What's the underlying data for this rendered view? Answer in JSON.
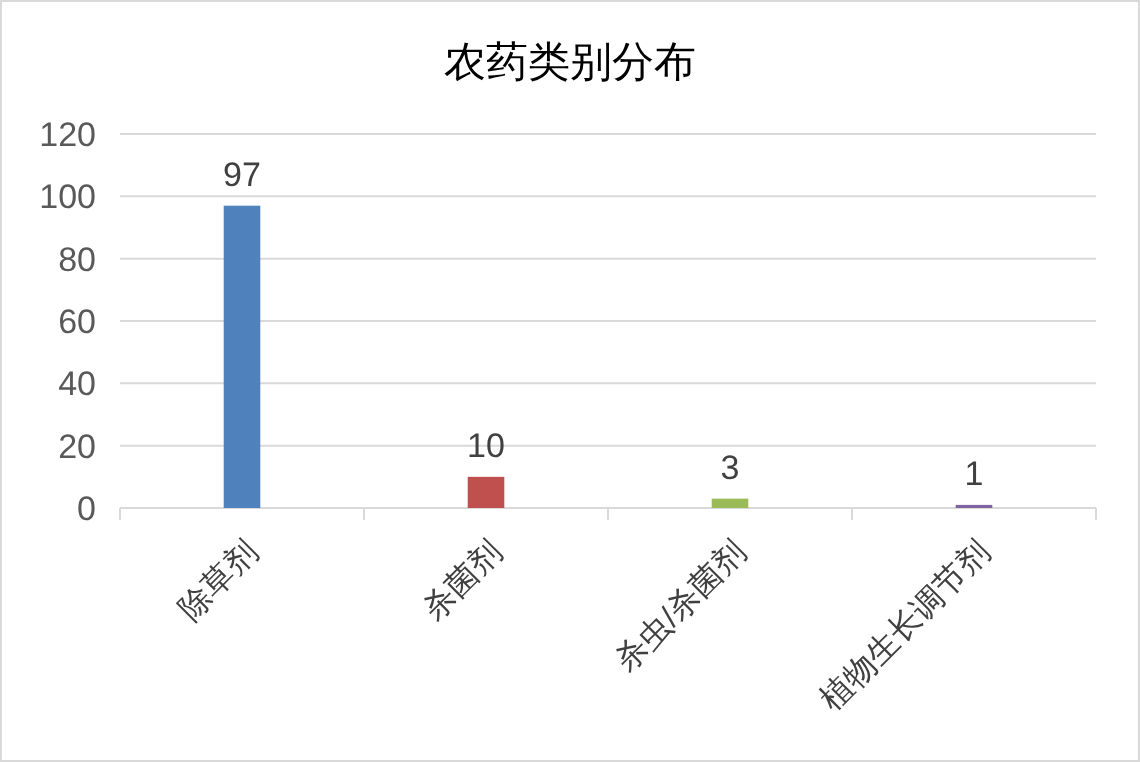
{
  "chart_data": {
    "type": "bar",
    "title": "农药类别分布",
    "categories": [
      "除草剂",
      "杀菌剂",
      "杀虫/杀菌剂",
      "植物生长调节剂"
    ],
    "values": [
      97,
      10,
      3,
      1
    ],
    "colors": [
      "#4f81bd",
      "#c0504d",
      "#9bbb59",
      "#8064a2"
    ],
    "ylim": [
      0,
      120
    ],
    "yticks": [
      0,
      20,
      40,
      60,
      80,
      100,
      120
    ],
    "grid": "y",
    "data_labels": true
  }
}
